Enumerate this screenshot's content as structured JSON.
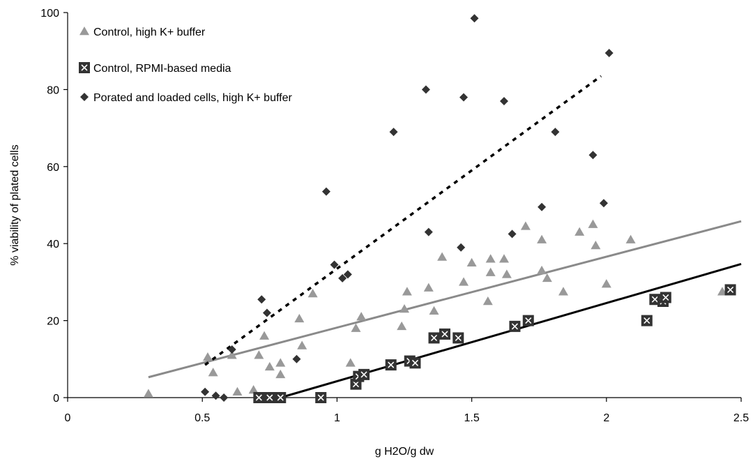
{
  "chart_data": {
    "type": "scatter",
    "title": "",
    "xlabel": "g H2O/g dw",
    "ylabel": "% viability of plated cells",
    "xlim": [
      0,
      2.5
    ],
    "ylim": [
      0,
      100
    ],
    "xticks": [
      "0",
      "0.5",
      "1",
      "1.5",
      "2",
      "2.5"
    ],
    "yticks": [
      "0",
      "20",
      "40",
      "60",
      "80",
      "100"
    ],
    "grid": false,
    "legend_position": "top-left",
    "series": [
      {
        "name": "Control, high K+ buffer",
        "marker": "triangle",
        "color": "#999999",
        "points": [
          [
            0.3,
            1
          ],
          [
            0.52,
            10.5
          ],
          [
            0.54,
            6.5
          ],
          [
            0.61,
            11
          ],
          [
            0.63,
            1.5
          ],
          [
            0.69,
            2
          ],
          [
            0.71,
            11
          ],
          [
            0.73,
            16
          ],
          [
            0.75,
            8
          ],
          [
            0.79,
            9
          ],
          [
            0.79,
            6
          ],
          [
            0.86,
            20.5
          ],
          [
            0.87,
            13.5
          ],
          [
            0.91,
            27
          ],
          [
            1.05,
            9
          ],
          [
            1.07,
            18
          ],
          [
            1.09,
            21
          ],
          [
            1.24,
            18.5
          ],
          [
            1.25,
            23
          ],
          [
            1.26,
            27.5
          ],
          [
            1.34,
            28.5
          ],
          [
            1.36,
            22.5
          ],
          [
            1.39,
            36.5
          ],
          [
            1.47,
            30
          ],
          [
            1.5,
            35
          ],
          [
            1.56,
            25
          ],
          [
            1.57,
            36
          ],
          [
            1.57,
            32.5
          ],
          [
            1.62,
            36
          ],
          [
            1.63,
            32
          ],
          [
            1.7,
            44.5
          ],
          [
            1.76,
            41
          ],
          [
            1.76,
            33
          ],
          [
            1.78,
            31
          ],
          [
            1.84,
            27.5
          ],
          [
            1.9,
            43
          ],
          [
            1.95,
            45
          ],
          [
            1.96,
            39.5
          ],
          [
            2.0,
            29.5
          ],
          [
            2.09,
            41
          ],
          [
            2.43,
            27.5
          ]
        ],
        "trend": {
          "style": "solid",
          "color": "#8a8a8a",
          "x": [
            0.3,
            2.5
          ],
          "y": [
            5.3,
            45.8
          ]
        }
      },
      {
        "name": "Control, RPMI-based media",
        "marker": "square-x",
        "color": "#333333",
        "points": [
          [
            0.71,
            0
          ],
          [
            0.75,
            0
          ],
          [
            0.79,
            0
          ],
          [
            0.94,
            0
          ],
          [
            1.07,
            3.5
          ],
          [
            1.08,
            5.5
          ],
          [
            1.1,
            6
          ],
          [
            1.2,
            8.5
          ],
          [
            1.27,
            9.5
          ],
          [
            1.29,
            9
          ],
          [
            1.36,
            15.5
          ],
          [
            1.4,
            16.5
          ],
          [
            1.45,
            15.5
          ],
          [
            1.66,
            18.5
          ],
          [
            1.71,
            20
          ],
          [
            2.15,
            20
          ],
          [
            2.18,
            25.5
          ],
          [
            2.21,
            25
          ],
          [
            2.22,
            26
          ],
          [
            2.46,
            28
          ]
        ],
        "trend": {
          "style": "solid",
          "color": "#000000",
          "x": [
            0.79,
            2.5
          ],
          "y": [
            0,
            34.7
          ]
        }
      },
      {
        "name": "Porated and loaded cells, high K+ buffer",
        "marker": "diamond",
        "color": "#333333",
        "points": [
          [
            0.51,
            1.5
          ],
          [
            0.55,
            0.5
          ],
          [
            0.58,
            0
          ],
          [
            0.61,
            12.5
          ],
          [
            0.72,
            25.5
          ],
          [
            0.74,
            22
          ],
          [
            0.85,
            10
          ],
          [
            0.96,
            53.5
          ],
          [
            0.99,
            34.5
          ],
          [
            1.02,
            31
          ],
          [
            1.04,
            32
          ],
          [
            1.21,
            69
          ],
          [
            1.33,
            80
          ],
          [
            1.34,
            43
          ],
          [
            1.46,
            39
          ],
          [
            1.47,
            78
          ],
          [
            1.51,
            98.5
          ],
          [
            1.62,
            77
          ],
          [
            1.65,
            42.5
          ],
          [
            1.76,
            49.5
          ],
          [
            1.81,
            69
          ],
          [
            1.95,
            63
          ],
          [
            1.99,
            50.5
          ],
          [
            2.01,
            89.5
          ]
        ],
        "trend": {
          "style": "dotted",
          "color": "#000000",
          "x": [
            0.51,
            1.98
          ],
          "y": [
            8.5,
            83.5
          ]
        }
      }
    ]
  }
}
